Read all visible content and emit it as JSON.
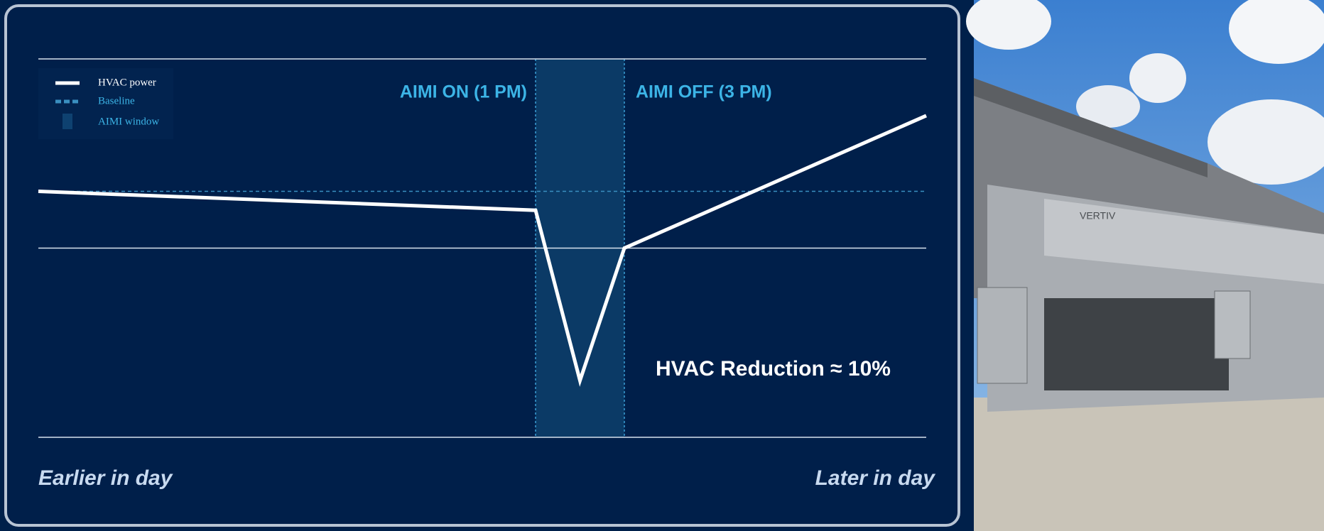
{
  "chart_data": {
    "type": "line",
    "x": [
      0,
      56,
      61,
      66,
      100
    ],
    "series": [
      {
        "name": "HVAC power",
        "color": "#ffffff",
        "values": [
          65,
          60,
          15,
          50,
          85
        ]
      }
    ],
    "baseline": {
      "name": "Baseline",
      "value": 65,
      "color": "#3a8fc0"
    },
    "window": {
      "name": "AIMI window",
      "start": 56,
      "end": 66,
      "color": "#0b3a66"
    },
    "window_labels": [
      "AIMI ON (1 PM)",
      "AIMI OFF (3 PM)"
    ],
    "annotation": "HVAC Reduction ≈ 10%",
    "x_labels": [
      "Earlier in day",
      "Later in day"
    ],
    "xlim": [
      0,
      100
    ],
    "ylim": [
      0,
      100
    ],
    "yticks": [
      0,
      50,
      100
    ],
    "grid": true,
    "legend": "upper left"
  }
}
